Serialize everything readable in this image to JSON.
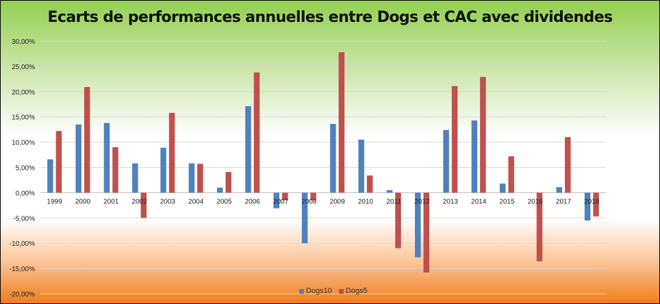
{
  "chart_data": {
    "type": "bar",
    "title": "Ecarts de performances annuelles entre Dogs et CAC avec dividendes",
    "xlabel": "",
    "ylabel": "",
    "ylim": [
      -0.2,
      0.3
    ],
    "y_ticks": [
      "-20,00%",
      "-15,00%",
      "-10,00%",
      "-5,00%",
      "0,00%",
      "5,00%",
      "10,00%",
      "15,00%",
      "20,00%",
      "25,00%",
      "30,00%"
    ],
    "grid": true,
    "legend_position": "bottom",
    "categories": [
      "1999",
      "2000",
      "2001",
      "2002",
      "2003",
      "2004",
      "2005",
      "2006",
      "2007",
      "2008",
      "2009",
      "2010",
      "2011",
      "2012",
      "2013",
      "2014",
      "2015",
      "2016",
      "2017",
      "2018"
    ],
    "series": [
      {
        "name": "Dogs10",
        "color": "#4f81bd",
        "values": [
          0.066,
          0.135,
          0.138,
          0.058,
          0.089,
          0.058,
          0.01,
          0.171,
          -0.031,
          -0.1,
          0.136,
          0.105,
          0.005,
          -0.128,
          0.124,
          0.143,
          0.018,
          0.0,
          0.011,
          -0.055
        ]
      },
      {
        "name": "Dogs5",
        "color": "#c0504d",
        "values": [
          0.122,
          0.209,
          0.09,
          -0.05,
          0.158,
          0.057,
          0.041,
          0.238,
          -0.015,
          -0.015,
          0.278,
          0.034,
          -0.11,
          -0.158,
          0.211,
          0.229,
          0.072,
          -0.136,
          0.11,
          -0.047
        ]
      }
    ]
  }
}
